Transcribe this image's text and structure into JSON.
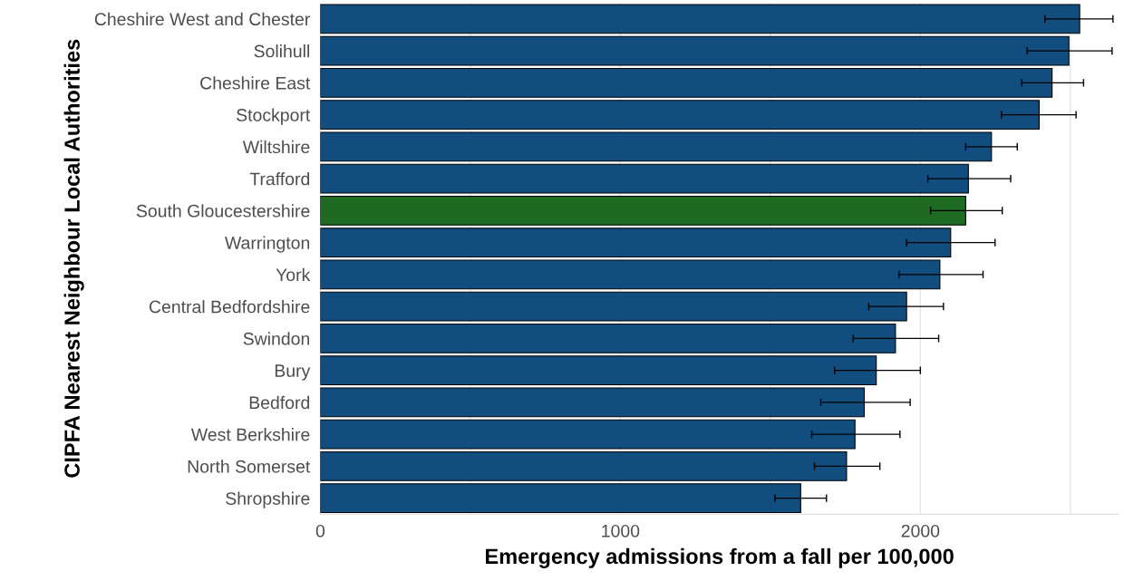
{
  "chart_data": {
    "type": "bar",
    "orientation": "horizontal",
    "xlabel": "Emergency admissions from a fall per 100,000",
    "ylabel": "CIPFA Nearest Neighbour Local Authorities",
    "categories": [
      "Cheshire West and Chester",
      "Solihull",
      "Cheshire East",
      "Stockport",
      "Wiltshire",
      "Trafford",
      "South Gloucestershire",
      "Warrington",
      "York",
      "Central Bedfordshire",
      "Swindon",
      "Bury",
      "Bedford",
      "West Berkshire",
      "North Somerset",
      "Shropshire"
    ],
    "values": [
      2531,
      2495,
      2439,
      2396,
      2237,
      2160,
      2151,
      2101,
      2065,
      1954,
      1917,
      1853,
      1813,
      1782,
      1754,
      1601
    ],
    "errors": [
      [
        2415,
        2642
      ],
      [
        2356,
        2639
      ],
      [
        2338,
        2544
      ],
      [
        2270,
        2519
      ],
      [
        2151,
        2323
      ],
      [
        2025,
        2301
      ],
      [
        2034,
        2273
      ],
      [
        1954,
        2249
      ],
      [
        1929,
        2209
      ],
      [
        1828,
        2077
      ],
      [
        1776,
        2061
      ],
      [
        1714,
        2000
      ],
      [
        1668,
        1966
      ],
      [
        1638,
        1932
      ],
      [
        1647,
        1865
      ],
      [
        1515,
        1687
      ]
    ],
    "colors": [
      "#124d80",
      "#124d80",
      "#124d80",
      "#124d80",
      "#124d80",
      "#124d80",
      "#1e6a22",
      "#124d80",
      "#124d80",
      "#124d80",
      "#124d80",
      "#124d80",
      "#124d80",
      "#124d80",
      "#124d80",
      "#124d80"
    ],
    "xlim": [
      0,
      2660
    ],
    "xticks": [
      0,
      {
        "value": 500,
        "label": null
      },
      1000,
      {
        "value": 1500,
        "label": null
      },
      2000,
      {
        "value": 2500,
        "label": null
      }
    ],
    "grid": "x",
    "legend": false
  }
}
